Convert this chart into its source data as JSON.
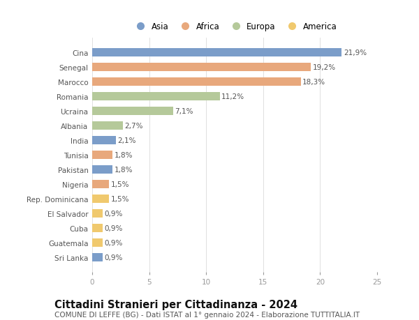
{
  "categories": [
    "Cina",
    "Senegal",
    "Marocco",
    "Romania",
    "Ucraina",
    "Albania",
    "India",
    "Tunisia",
    "Pakistan",
    "Nigeria",
    "Rep. Dominicana",
    "El Salvador",
    "Cuba",
    "Guatemala",
    "Sri Lanka"
  ],
  "values": [
    21.9,
    19.2,
    18.3,
    11.2,
    7.1,
    2.7,
    2.1,
    1.8,
    1.8,
    1.5,
    1.5,
    0.9,
    0.9,
    0.9,
    0.9
  ],
  "labels": [
    "21,9%",
    "19,2%",
    "18,3%",
    "11,2%",
    "7,1%",
    "2,7%",
    "2,1%",
    "1,8%",
    "1,8%",
    "1,5%",
    "1,5%",
    "0,9%",
    "0,9%",
    "0,9%",
    "0,9%"
  ],
  "colors": [
    "#7b9dc9",
    "#e8a87c",
    "#e8a87c",
    "#b5c99a",
    "#b5c99a",
    "#b5c99a",
    "#7b9dc9",
    "#e8a87c",
    "#7b9dc9",
    "#e8a87c",
    "#f0c96e",
    "#f0c96e",
    "#f0c96e",
    "#f0c96e",
    "#7b9dc9"
  ],
  "legend_labels": [
    "Asia",
    "Africa",
    "Europa",
    "America"
  ],
  "legend_colors": [
    "#7b9dc9",
    "#e8a87c",
    "#b5c99a",
    "#f0c96e"
  ],
  "title": "Cittadini Stranieri per Cittadinanza - 2024",
  "subtitle": "COMUNE DI LEFFE (BG) - Dati ISTAT al 1° gennaio 2024 - Elaborazione TUTTITALIA.IT",
  "xlim": [
    0,
    25
  ],
  "xticks": [
    0,
    5,
    10,
    15,
    20,
    25
  ],
  "background_color": "#ffffff",
  "grid_color": "#e0e0e0",
  "bar_height": 0.55,
  "title_fontsize": 10.5,
  "subtitle_fontsize": 7.5,
  "label_fontsize": 7.5,
  "tick_fontsize": 7.5,
  "legend_fontsize": 8.5
}
